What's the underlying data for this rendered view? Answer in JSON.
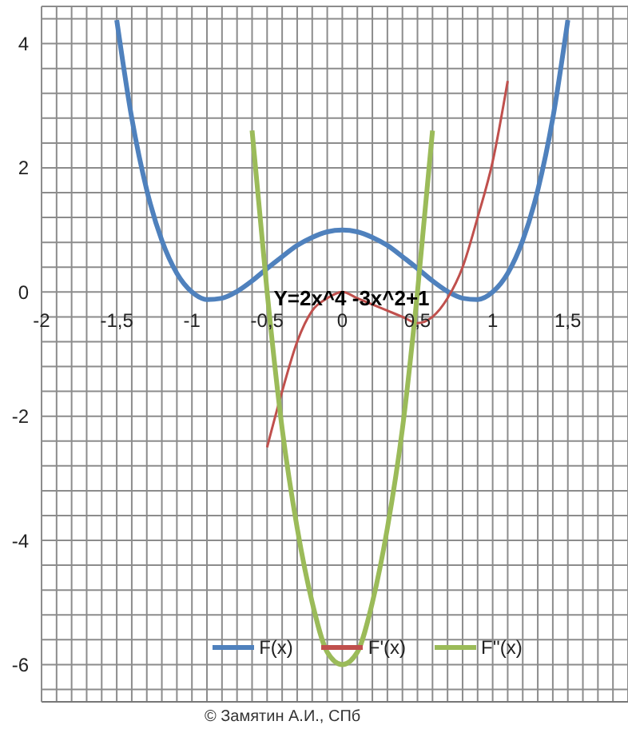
{
  "chart_data": {
    "type": "line",
    "annotations": [
      "Y=2x^4 -3x^2+1",
      "© Замятин А.И., СПб"
    ],
    "series": [
      {
        "name": "F(x)",
        "color": "#4f81bd",
        "x": [
          -1.5,
          -1.4,
          -1.3,
          -1.2,
          -1.1,
          -1,
          -0.9,
          -0.8,
          -0.7,
          -0.6,
          -0.5,
          -0.4,
          -0.3,
          -0.2,
          -0.1,
          0,
          0.1,
          0.2,
          0.3,
          0.4,
          0.5,
          0.6,
          0.7,
          0.8,
          0.9,
          1,
          1.1,
          1.2,
          1.3,
          1.4,
          1.5
        ],
        "values": [
          4.38,
          2.8,
          1.64,
          0.83,
          0.3,
          0,
          -0.12,
          -0.1,
          0.01,
          0.18,
          0.38,
          0.57,
          0.75,
          0.88,
          0.97,
          1,
          0.97,
          0.88,
          0.75,
          0.57,
          0.38,
          0.18,
          0.01,
          -0.1,
          -0.12,
          0,
          0.3,
          0.83,
          1.64,
          2.8,
          4.38
        ]
      },
      {
        "name": "F'(x)",
        "color": "#c0504d",
        "x": [
          -0.5,
          -0.4,
          -0.3,
          -0.2,
          -0.1,
          0,
          0.1,
          0.2,
          0.3,
          0.4,
          0.5,
          0.6,
          0.7,
          0.8,
          0.9,
          1,
          1.1
        ],
        "values": [
          -2.5,
          -1.6,
          -0.8,
          -0.3,
          -0.1,
          0,
          -0.1,
          -0.2,
          -0.3,
          -0.4,
          -0.5,
          -0.4,
          -0.1,
          0.4,
          1.2,
          2.1,
          3.4
        ]
      },
      {
        "name": "F''(x)",
        "color": "#9bbb59",
        "x": [
          -0.6,
          -0.5,
          -0.4,
          -0.3,
          -0.2,
          -0.1,
          0,
          0.1,
          0.2,
          0.3,
          0.4,
          0.5,
          0.6
        ],
        "values": [
          2.6,
          0,
          -2.2,
          -3.8,
          -5,
          -5.8,
          -6,
          -5.8,
          -5,
          -3.8,
          -2.2,
          0,
          2.6
        ]
      }
    ],
    "xlim": [
      -2,
      1.9
    ],
    "xticks": [
      -2,
      {
        "value": -1.9,
        "label": null
      },
      {
        "value": -1.8,
        "label": null
      },
      {
        "value": -1.7,
        "label": null
      },
      {
        "value": -1.6,
        "label": null
      },
      {
        "value": -1.5,
        "label": "-1,5"
      },
      {
        "value": -1.4,
        "label": null
      },
      {
        "value": -1.3,
        "label": null
      },
      {
        "value": -1.2,
        "label": null
      },
      {
        "value": -1.1,
        "label": null
      },
      -1,
      {
        "value": -0.9,
        "label": null
      },
      {
        "value": -0.8,
        "label": null
      },
      {
        "value": -0.7,
        "label": null
      },
      {
        "value": -0.6,
        "label": null
      },
      {
        "value": -0.5,
        "label": "-0,5"
      },
      {
        "value": -0.4,
        "label": null
      },
      {
        "value": -0.3,
        "label": null
      },
      {
        "value": -0.2,
        "label": null
      },
      {
        "value": -0.1,
        "label": null
      },
      0,
      {
        "value": 0.1,
        "label": null
      },
      {
        "value": 0.2,
        "label": null
      },
      {
        "value": 0.3,
        "label": null
      },
      {
        "value": 0.4,
        "label": null
      },
      {
        "value": 0.5,
        "label": "0,5"
      },
      {
        "value": 0.6,
        "label": null
      },
      {
        "value": 0.7,
        "label": null
      },
      {
        "value": 0.8,
        "label": null
      },
      {
        "value": 0.9,
        "label": null
      },
      1,
      {
        "value": 1.1,
        "label": null
      },
      {
        "value": 1.2,
        "label": null
      },
      {
        "value": 1.3,
        "label": null
      },
      {
        "value": 1.4,
        "label": null
      },
      {
        "value": 1.5,
        "label": "1,5"
      },
      {
        "value": 1.6,
        "label": null
      },
      {
        "value": 1.7,
        "label": null
      },
      {
        "value": 1.8,
        "label": null
      }
    ],
    "ylim": [
      -6.6,
      4.6
    ],
    "yticks": [
      {
        "value": -6.4,
        "label": null
      },
      -6,
      {
        "value": -5.6,
        "label": null
      },
      {
        "value": -5.2,
        "label": null
      },
      {
        "value": -4.8,
        "label": null
      },
      {
        "value": -4.4,
        "label": null
      },
      -4,
      {
        "value": -3.6,
        "label": null
      },
      {
        "value": -3.2,
        "label": null
      },
      {
        "value": -2.8,
        "label": null
      },
      {
        "value": -2.4,
        "label": null
      },
      -2,
      {
        "value": -1.6,
        "label": null
      },
      {
        "value": -1.2,
        "label": null
      },
      {
        "value": -0.8,
        "label": null
      },
      {
        "value": -0.4,
        "label": null
      },
      0,
      {
        "value": 0.4,
        "label": null
      },
      {
        "value": 0.8,
        "label": null
      },
      {
        "value": 1.2,
        "label": null
      },
      {
        "value": 1.6,
        "label": null
      },
      2,
      {
        "value": 2.4,
        "label": null
      },
      {
        "value": 2.8,
        "label": null
      },
      {
        "value": 3.2,
        "label": null
      },
      {
        "value": 3.6,
        "label": null
      },
      4,
      {
        "value": 4.4,
        "label": null
      }
    ],
    "grid": true,
    "legend": "bottom",
    "marker": "none",
    "line_style": "solid"
  }
}
